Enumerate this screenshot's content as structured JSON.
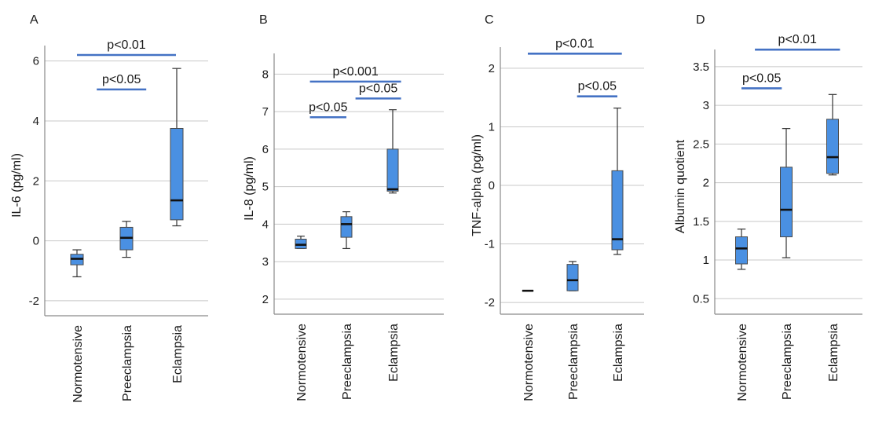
{
  "colors": {
    "box": "#4a90e2",
    "bracket": "#4472c4",
    "grid": "#c8c8c8"
  },
  "chart_data": [
    {
      "panel": "A",
      "type": "box",
      "ylabel": "IL-6 (pg/ml)",
      "ylim": [
        -2.5,
        6.2
      ],
      "ticks": [
        -2,
        0,
        2,
        4,
        6
      ],
      "tick_labels": [
        "-2",
        "0",
        "2",
        "4",
        "6"
      ],
      "categories": [
        "Normotensive",
        "Preeclampsia",
        "Eclampsia"
      ],
      "boxes": [
        {
          "min": -1.2,
          "q1": -0.8,
          "median": -0.6,
          "q3": -0.45,
          "max": -0.3
        },
        {
          "min": -0.55,
          "q1": -0.3,
          "median": 0.1,
          "q3": 0.45,
          "max": 0.65
        },
        {
          "min": 0.5,
          "q1": 0.7,
          "median": 1.35,
          "q3": 3.75,
          "max": 5.75
        }
      ],
      "significance": [
        {
          "label": "p<0.01",
          "from": 0,
          "to": 2,
          "y": 6.2
        },
        {
          "label": "p<0.05",
          "from": 0.4,
          "to": 1.4,
          "y": 5.05
        }
      ]
    },
    {
      "panel": "B",
      "type": "box",
      "ylabel": "IL-8 (pg/ml)",
      "ylim": [
        1.6,
        8.3
      ],
      "ticks": [
        2,
        3,
        4,
        5,
        6,
        7,
        8
      ],
      "tick_labels": [
        "2",
        "3",
        "4",
        "5",
        "6",
        "7",
        "8"
      ],
      "categories": [
        "Normotensive",
        "Preeclampsia",
        "Eclampsia"
      ],
      "boxes": [
        {
          "min": 3.35,
          "q1": 3.35,
          "median": 3.45,
          "q3": 3.6,
          "max": 3.68
        },
        {
          "min": 3.35,
          "q1": 3.65,
          "median": 4.0,
          "q3": 4.2,
          "max": 4.33
        },
        {
          "min": 4.83,
          "q1": 4.88,
          "median": 4.93,
          "q3": 6.0,
          "max": 7.05
        }
      ],
      "significance": [
        {
          "label": "p<0.001",
          "from": 0.2,
          "to": 2.2,
          "y": 7.8
        },
        {
          "label": "p<0.05",
          "from": 0.2,
          "to": 1.0,
          "y": 6.85
        },
        {
          "label": "p<0.05",
          "from": 1.2,
          "to": 2.2,
          "y": 7.35
        }
      ]
    },
    {
      "panel": "C",
      "type": "box",
      "ylabel": "TNF-alpha (pg/ml)",
      "ylim": [
        -2.2,
        2.2
      ],
      "ticks": [
        -2,
        -1,
        0,
        1,
        2
      ],
      "tick_labels": [
        "-2",
        "-1",
        "0",
        "1",
        "2"
      ],
      "categories": [
        "Normotensive",
        "Preeclampsia",
        "Eclampsia"
      ],
      "boxes": [
        {
          "min": -1.8,
          "q1": -1.8,
          "median": -1.8,
          "q3": -1.8,
          "max": -1.8
        },
        {
          "min": -1.8,
          "q1": -1.8,
          "median": -1.62,
          "q3": -1.35,
          "max": -1.3
        },
        {
          "min": -1.18,
          "q1": -1.1,
          "median": -0.92,
          "q3": 0.25,
          "max": 1.32
        }
      ],
      "significance": [
        {
          "label": "p<0.01",
          "from": 0,
          "to": 2.1,
          "y": 2.25
        },
        {
          "label": "p<0.05",
          "from": 1.1,
          "to": 2.0,
          "y": 1.52
        }
      ]
    },
    {
      "panel": "D",
      "type": "box",
      "ylabel": "Albumin quotient",
      "ylim": [
        0.3,
        3.6
      ],
      "ticks": [
        0.5,
        1,
        1.5,
        2,
        2.5,
        3,
        3.5
      ],
      "tick_labels": [
        "0.5",
        "1",
        "1.5",
        "2",
        "2.5",
        "3",
        "3.5"
      ],
      "categories": [
        "Normotensive",
        "Preeclampsia",
        "Eclampsia"
      ],
      "boxes": [
        {
          "min": 0.88,
          "q1": 0.95,
          "median": 1.15,
          "q3": 1.3,
          "max": 1.4
        },
        {
          "min": 1.03,
          "q1": 1.3,
          "median": 1.65,
          "q3": 2.2,
          "max": 2.7
        },
        {
          "min": 2.1,
          "q1": 2.12,
          "median": 2.33,
          "q3": 2.82,
          "max": 3.14
        }
      ],
      "significance": [
        {
          "label": "p<0.01",
          "from": 0.3,
          "to": 2.2,
          "y": 3.72
        },
        {
          "label": "p<0.05",
          "from": 0,
          "to": 0.9,
          "y": 3.22
        }
      ]
    }
  ]
}
